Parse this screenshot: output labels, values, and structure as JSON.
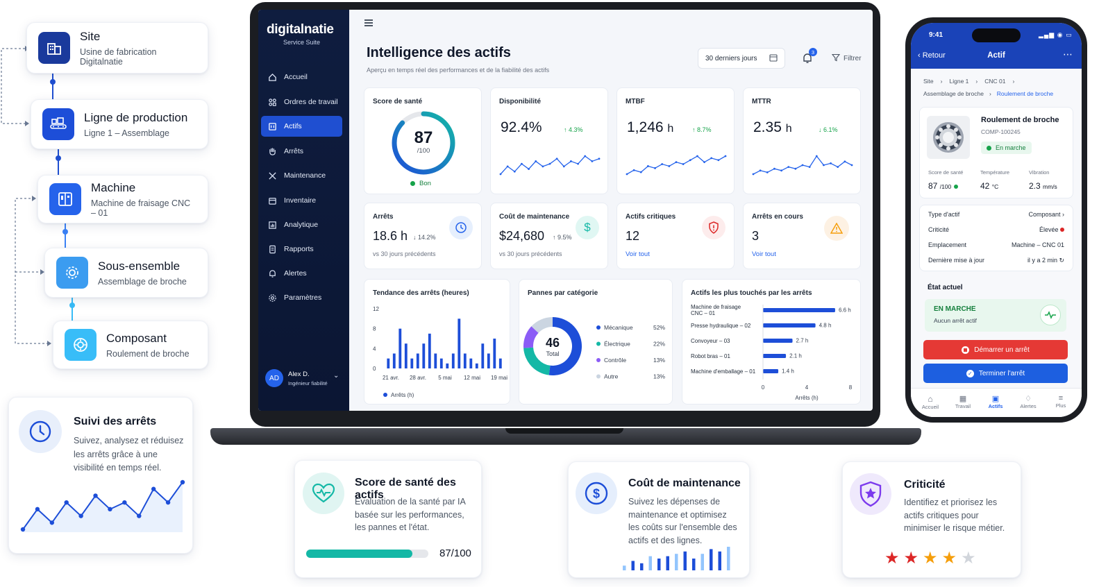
{
  "hierarchy": {
    "site": {
      "title": "Site",
      "sub": "Usine de fabrication Digitalnatie"
    },
    "line": {
      "title": "Ligne de production",
      "sub": "Ligne 1 – Assemblage"
    },
    "machine": {
      "title": "Machine",
      "sub": "Machine de fraisage CNC – 01"
    },
    "subassembly": {
      "title": "Sous-ensemble",
      "sub": "Assemblage de broche"
    },
    "component": {
      "title": "Composant",
      "sub": "Roulement de broche"
    }
  },
  "downtime_card": {
    "title": "Suivi des arrêts",
    "desc_lines": [
      "Suivez, analysez et réduisez",
      "les arrêts grâce à une",
      "visibilité en temps réel."
    ],
    "series": [
      2,
      5,
      3,
      6,
      4,
      7,
      5,
      6,
      4,
      8,
      6,
      9
    ]
  },
  "app": {
    "brand": "digitalnatie",
    "brand_sub": "Service Suite",
    "nav": [
      "Accueil",
      "Ordres de travail",
      "Actifs",
      "Arrêts",
      "Maintenance",
      "Inventaire",
      "Analytique",
      "Rapports",
      "Alertes",
      "Paramètres"
    ],
    "user": {
      "initials": "AD",
      "name": "Alex D.",
      "role": "Ingénieur fiabilité"
    },
    "title": "Intelligence des actifs",
    "subtitle": "Aperçu en temps réel des performances et de la fiabilité des actifs",
    "range": "30 derniers jours",
    "notif_count": "3",
    "filter": "Filtrer",
    "health": {
      "label": "Score de santé",
      "value": "87",
      "max": "/100",
      "status": "Bon",
      "pct": 0.87
    },
    "availability": {
      "label": "Disponibilité",
      "value": "92.4%",
      "delta": "↑ 4.3%"
    },
    "mtbf": {
      "label": "MTBF",
      "value": "1,246",
      "unit": "h",
      "delta": "↑ 8.7%"
    },
    "mttr": {
      "label": "MTTR",
      "value": "2.35",
      "unit": "h",
      "delta": "↓ 6.1%"
    },
    "stops": {
      "label": "Arrêts",
      "value": "18.6 h",
      "delta": "↓ 14.2%",
      "note": "vs 30 jours précédents"
    },
    "maint_cost": {
      "label": "Coût de maintenance",
      "value": "$24,680",
      "delta": "↑ 9.5%",
      "note": "vs 30 jours précédents"
    },
    "critical": {
      "label": "Actifs critiques",
      "value": "12",
      "link": "Voir tout"
    },
    "ongoing": {
      "label": "Arrêts en cours",
      "value": "3",
      "link": "Voir tout"
    }
  },
  "chart_data": [
    {
      "type": "bar",
      "title": "Tendance des arrêts (heures)",
      "y_ticks": [
        "12",
        "8",
        "4",
        "0"
      ],
      "x_ticks": [
        "21 avr.",
        "28 avr.",
        "5 mai",
        "12 mai",
        "19 mai"
      ],
      "legend": "Arrêts (h)",
      "ylim": [
        0,
        12
      ],
      "values": [
        2,
        3,
        8,
        5,
        2,
        3,
        5,
        7,
        3,
        2,
        1,
        3,
        10,
        3,
        2,
        1,
        5,
        3,
        6,
        2
      ]
    },
    {
      "type": "pie",
      "title": "Pannes par catégorie",
      "center_value": "46",
      "center_label": "Total",
      "categories": [
        "Mécanique",
        "Électrique",
        "Contrôle",
        "Autre"
      ],
      "labels": [
        "52%",
        "22%",
        "13%",
        "13%"
      ],
      "values": [
        52,
        22,
        13,
        13
      ],
      "colors": [
        "#1d4ed8",
        "#14b8a6",
        "#8b5cf6",
        "#cbd5e1"
      ]
    },
    {
      "type": "bar",
      "title": "Actifs les plus touchés par les arrêts",
      "categories": [
        "Machine de fraisage CNC – 01",
        "Presse hydraulique – 02",
        "Convoyeur – 03",
        "Robot bras – 01",
        "Machine d'emballage – 01"
      ],
      "values": [
        6.6,
        4.8,
        2.7,
        2.1,
        1.4
      ],
      "labels": [
        "6.6 h",
        "4.8 h",
        "2.7 h",
        "2.1 h",
        "1.4 h"
      ],
      "x_ticks": [
        "0",
        "4",
        "8"
      ],
      "xlabel": "Arrêts (h)",
      "xlim": [
        0,
        8
      ]
    }
  ],
  "phone": {
    "time": "9:41",
    "back": "Retour",
    "title": "Actif",
    "crumbs1": [
      "Site",
      "Ligne 1",
      "CNC 01"
    ],
    "crumbs2": [
      "Assemblage de broche",
      "Roulement de broche"
    ],
    "asset_name": "Roulement de broche",
    "asset_code": "COMP-100245",
    "status_pill": "En marche",
    "metrics": [
      {
        "label": "Score de santé",
        "value": "87",
        "unit": "/100"
      },
      {
        "label": "Température",
        "value": "42",
        "unit": "°C"
      },
      {
        "label": "Vibration",
        "value": "2.3",
        "unit": "mm/s"
      }
    ],
    "props": [
      {
        "k": "Type d'actif",
        "v": "Composant ›"
      },
      {
        "k": "Criticité",
        "v": "Élevée"
      },
      {
        "k": "Emplacement",
        "v": "Machine – CNC 01"
      },
      {
        "k": "Dernière mise à jour",
        "v": "il y a 2 min ↻"
      }
    ],
    "state_title": "État actuel",
    "state_main": "EN MARCHE",
    "state_sub": "Aucun arrêt actif",
    "btn_start": "Démarrer un arrêt",
    "btn_end": "Terminer l'arrêt",
    "tabs": [
      "Accueil",
      "Travail",
      "Actifs",
      "Alertes",
      "Plus"
    ]
  },
  "features": [
    {
      "title": "Score de santé des actifs",
      "desc": [
        "Évaluation de la santé par IA",
        "basée sur les performances,",
        "les pannes et l'état."
      ],
      "value": "87/100",
      "pct": 0.87
    },
    {
      "title": "Coût de maintenance",
      "desc": [
        "Suivez les dépenses de",
        "maintenance et optimisez",
        "les coûts sur l'ensemble des",
        "actifs et des lignes."
      ],
      "bars": [
        2,
        4,
        3,
        6,
        5,
        6,
        7,
        8,
        5,
        7,
        9,
        8,
        10
      ]
    },
    {
      "title": "Criticité",
      "desc": [
        "Identifiez et priorisez les",
        "actifs critiques pour",
        "minimiser le risque métier."
      ],
      "rating": 4,
      "rating_max": 5
    }
  ],
  "colors": {
    "navy": "#0f1d3f",
    "blue": "#1f4fd1",
    "teal": "#14b8a6",
    "red": "#e53935",
    "green": "#16a34a"
  }
}
